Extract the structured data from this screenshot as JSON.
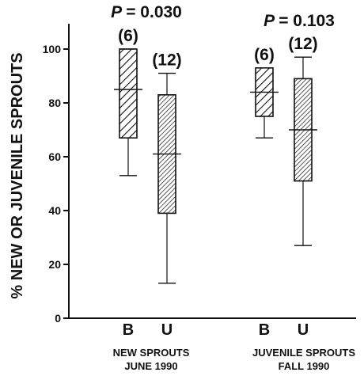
{
  "chart_data": {
    "type": "box",
    "ylabel": "% NEW OR JUVENILE SPROUTS",
    "ylim": [
      0,
      110
    ],
    "yticks": [
      0,
      20,
      40,
      60,
      80,
      100
    ],
    "grid": false,
    "groups": [
      {
        "label_line1": "NEW SPROUTS",
        "label_line2": "JUNE 1990",
        "p_label": "P",
        "p_value": "= 0.030",
        "boxes": [
          {
            "category": "B",
            "n_label": "(6)",
            "min": 53,
            "q1": 67,
            "median": 85,
            "q3": 100,
            "max": 100,
            "hatch": "diagonal"
          },
          {
            "category": "U",
            "n_label": "(12)",
            "min": 13,
            "q1": 39,
            "median": 61,
            "q3": 83,
            "max": 91,
            "hatch": "dense"
          }
        ]
      },
      {
        "label_line1": "JUVENILE SPROUTS",
        "label_line2": "FALL 1990",
        "p_label": "P",
        "p_value": "= 0.103",
        "boxes": [
          {
            "category": "B",
            "n_label": "(6)",
            "min": 67,
            "q1": 75,
            "median": 84,
            "q3": 93,
            "max": 93,
            "hatch": "diagonal"
          },
          {
            "category": "U",
            "n_label": "(12)",
            "min": 27,
            "q1": 51,
            "median": 70,
            "q3": 89,
            "max": 97,
            "hatch": "dense"
          }
        ]
      }
    ]
  },
  "colors": {
    "ink": "#111111",
    "background": "#ffffff"
  }
}
